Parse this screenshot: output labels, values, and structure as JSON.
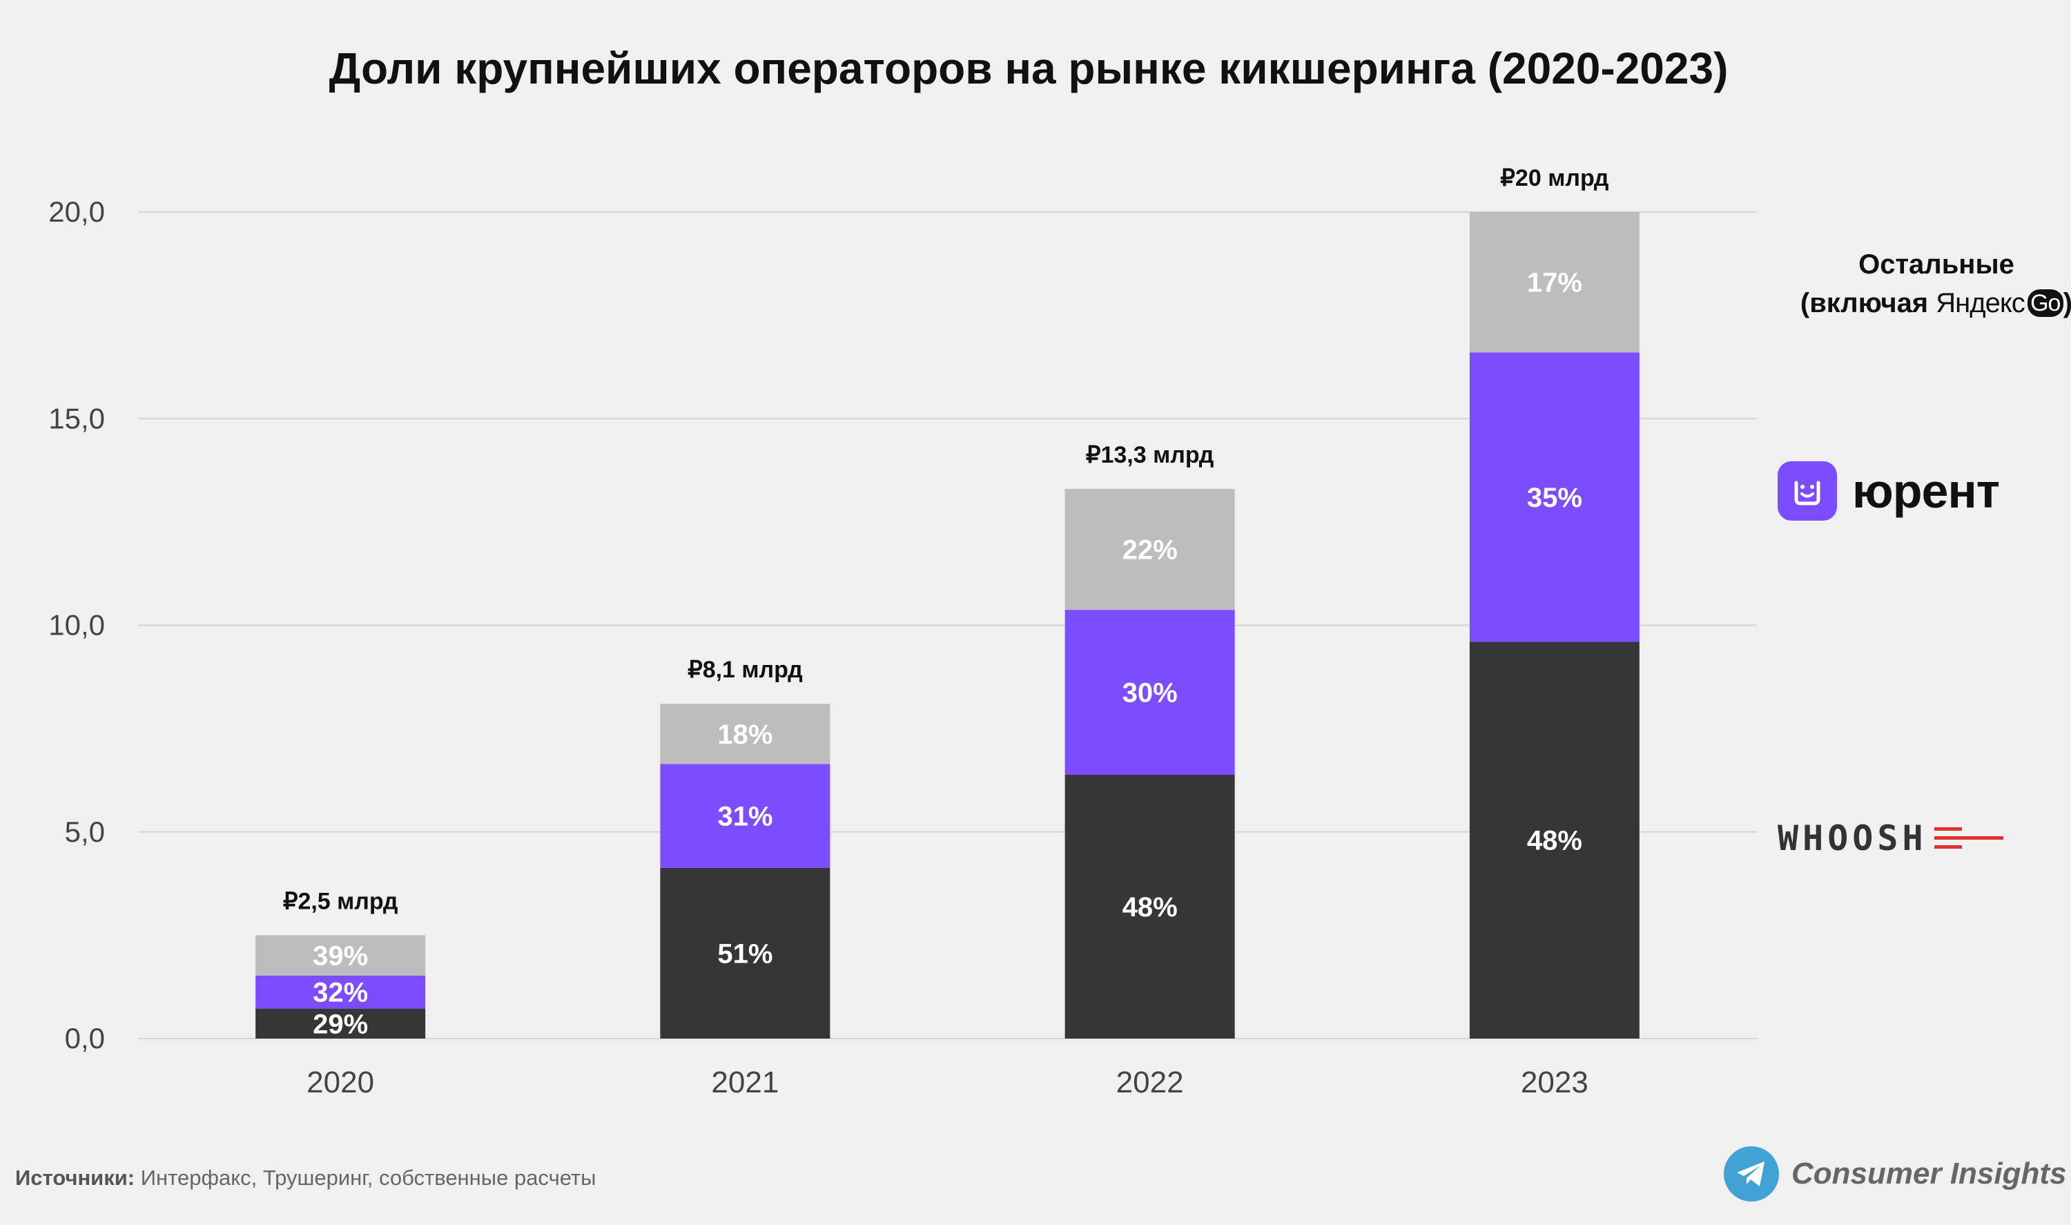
{
  "chart_data": {
    "type": "bar",
    "stacked": true,
    "title": "Доли крупнейших операторов на рынке кикшеринга (2020-2023)",
    "categories": [
      "2020",
      "2021",
      "2022",
      "2023"
    ],
    "totals": [
      2.5,
      8.1,
      13.3,
      20
    ],
    "total_labels": [
      "₽2,5 млрд",
      "₽8,1 млрд",
      "₽13,3 млрд",
      "₽20 млрд"
    ],
    "series": [
      {
        "name": "WHOOSH",
        "color": "#363636",
        "shares": [
          29,
          51,
          48,
          48
        ],
        "labels": [
          "29%",
          "51%",
          "48%",
          "48%"
        ]
      },
      {
        "name": "юрент",
        "color": "#7c4dff",
        "shares": [
          32,
          31,
          30,
          35
        ],
        "labels": [
          "32%",
          "31%",
          "30%",
          "35%"
        ]
      },
      {
        "name": "Остальные (включая Яндекс Go)",
        "color": "#bdbdbd",
        "shares": [
          39,
          18,
          22,
          17
        ],
        "labels": [
          "39%",
          "18%",
          "22%",
          "17%"
        ]
      }
    ],
    "ylim": [
      0,
      20
    ],
    "yticks": [
      0,
      5,
      10,
      15,
      20
    ],
    "ytick_labels": [
      "0,0",
      "5,0",
      "10,0",
      "15,0",
      "20,0"
    ],
    "grid": true,
    "legend_position": "right"
  },
  "legend": {
    "others_line1": "Остальные",
    "others_line2_prefix": "(включая",
    "yandex_text": "Яндекс",
    "go_text": "Go",
    "others_line2_suffix": ")",
    "urent": "юрент",
    "whoosh": "WHOOSH"
  },
  "footer": {
    "source_label": "Источники:",
    "source_text": "Интерфакс, Трушеринг, собственные расчеты",
    "brand": "Consumer Insights"
  }
}
